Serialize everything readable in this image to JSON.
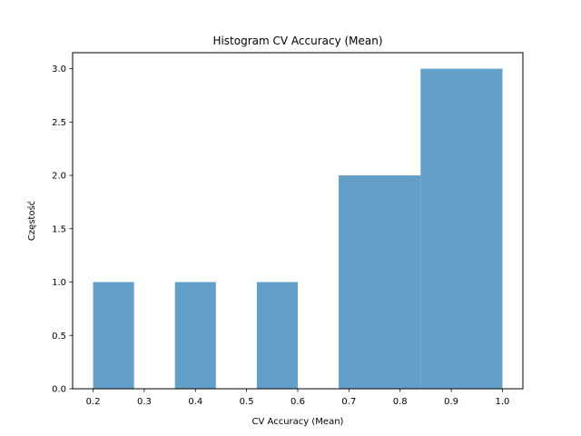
{
  "chart_data": {
    "type": "bar",
    "title": "Histogram CV Accuracy (Mean)",
    "xlabel": "CV Accuracy (Mean)",
    "ylabel": "Częstość",
    "bins": [
      {
        "x0": 0.2,
        "x1": 0.28,
        "count": 1
      },
      {
        "x0": 0.28,
        "x1": 0.36,
        "count": 0
      },
      {
        "x0": 0.36,
        "x1": 0.44,
        "count": 1
      },
      {
        "x0": 0.44,
        "x1": 0.52,
        "count": 0
      },
      {
        "x0": 0.52,
        "x1": 0.6,
        "count": 1
      },
      {
        "x0": 0.6,
        "x1": 0.68,
        "count": 0
      },
      {
        "x0": 0.68,
        "x1": 0.84,
        "count": 2
      },
      {
        "x0": 0.84,
        "x1": 1.0,
        "count": 3
      }
    ],
    "xlim": [
      0.16,
      1.04
    ],
    "ylim": [
      0,
      3.15
    ],
    "xticks": [
      0.2,
      0.3,
      0.4,
      0.5,
      0.6,
      0.7,
      0.8,
      0.9,
      1.0
    ],
    "xtick_labels": [
      "0.2",
      "0.3",
      "0.4",
      "0.5",
      "0.6",
      "0.7",
      "0.8",
      "0.9",
      "1.0"
    ],
    "yticks": [
      0,
      0.5,
      1.0,
      1.5,
      2.0,
      2.5,
      3.0
    ],
    "ytick_labels": [
      "0.0",
      "0.5",
      "1.0",
      "1.5",
      "2.0",
      "2.5",
      "3.0"
    ],
    "bar_color": "#1f77b4",
    "bar_opacity": 0.7,
    "grid": false,
    "legend": false
  }
}
